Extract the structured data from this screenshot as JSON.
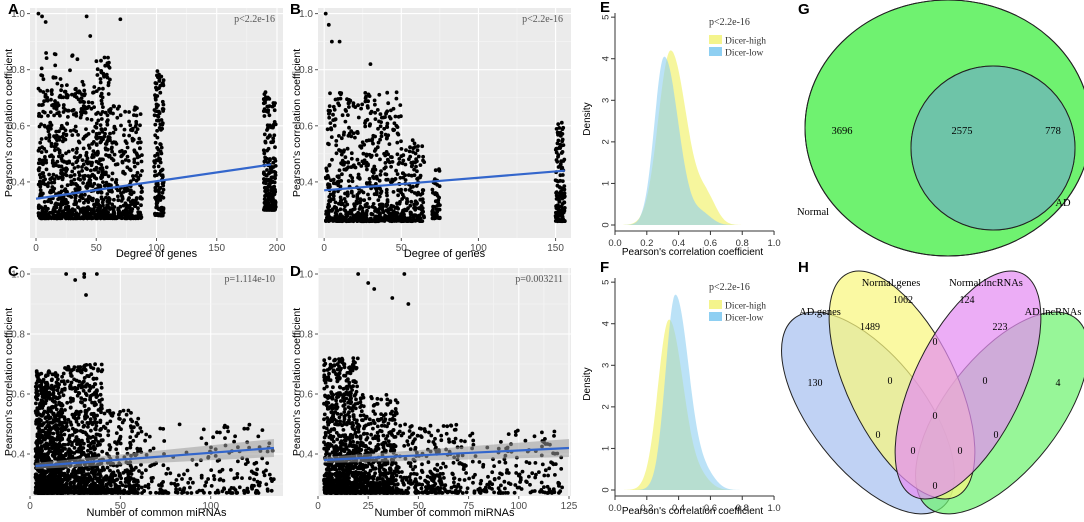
{
  "chart_data": [
    {
      "id": "A",
      "type": "scatter",
      "panel_label": "A",
      "xlabel": "Degree of genes",
      "ylabel": "Pearson's correlation coefficient",
      "annotation": "p<2.2e-16",
      "xlim": [
        -5,
        205
      ],
      "ylim": [
        0.2,
        1.02
      ],
      "xticks": [
        0,
        50,
        100,
        150,
        200
      ],
      "xtick_labels": [
        "0",
        "50",
        "100",
        "150",
        "200"
      ],
      "yticks": [
        0.4,
        0.6,
        0.8,
        1.0
      ],
      "ytick_labels": [
        "0.4",
        "0.6",
        "0.8",
        "1.0"
      ],
      "regression": {
        "x": [
          0,
          195
        ],
        "y": [
          0.34,
          0.462
        ]
      },
      "confidence_band": false,
      "scatter_clusters": [
        {
          "x": [
            2,
            50
          ],
          "y": [
            0.27,
            0.75
          ],
          "n": 650
        },
        {
          "x": [
            2,
            40
          ],
          "y": [
            0.7,
            0.86
          ],
          "n": 35
        },
        {
          "x": [
            50,
            62
          ],
          "y": [
            0.27,
            0.85
          ],
          "n": 220
        },
        {
          "x": [
            62,
            88
          ],
          "y": [
            0.27,
            0.68
          ],
          "n": 260
        },
        {
          "x": [
            98,
            106
          ],
          "y": [
            0.28,
            0.8
          ],
          "n": 160
        },
        {
          "x": [
            189,
            199
          ],
          "y": [
            0.3,
            0.72
          ],
          "n": 220
        }
      ],
      "outliers": [
        [
          2,
          1.0
        ],
        [
          5,
          0.99
        ],
        [
          8,
          0.97
        ],
        [
          42,
          0.99
        ],
        [
          70,
          0.98
        ],
        [
          45,
          0.92
        ]
      ]
    },
    {
      "id": "B",
      "type": "scatter",
      "panel_label": "B",
      "xlabel": "Degree of genes",
      "ylabel": "Pearson's correlation coefficient",
      "annotation": "p<2.2e-16",
      "xlim": [
        -4,
        160
      ],
      "ylim": [
        0.2,
        1.02
      ],
      "xticks": [
        0,
        50,
        100,
        150
      ],
      "xtick_labels": [
        "0",
        "50",
        "100",
        "150"
      ],
      "yticks": [
        0.4,
        0.6,
        0.8,
        1.0
      ],
      "ytick_labels": [
        "0.4",
        "0.6",
        "0.8",
        "1.0"
      ],
      "regression": {
        "x": [
          0,
          156
        ],
        "y": [
          0.37,
          0.44
        ]
      },
      "confidence_band": false,
      "scatter_clusters": [
        {
          "x": [
            1,
            50
          ],
          "y": [
            0.26,
            0.72
          ],
          "n": 650
        },
        {
          "x": [
            50,
            65
          ],
          "y": [
            0.26,
            0.55
          ],
          "n": 160
        },
        {
          "x": [
            70,
            75
          ],
          "y": [
            0.27,
            0.45
          ],
          "n": 60
        },
        {
          "x": [
            150,
            156
          ],
          "y": [
            0.26,
            0.62
          ],
          "n": 140
        }
      ],
      "outliers": [
        [
          1,
          1.0
        ],
        [
          3,
          0.96
        ],
        [
          5,
          0.9
        ],
        [
          10,
          0.9
        ],
        [
          30,
          0.82
        ]
      ]
    },
    {
      "id": "C",
      "type": "scatter",
      "panel_label": "C",
      "xlabel": "Number of common miRNAs",
      "ylabel": "Pearson's correlation coefficient",
      "annotation": "p=1.114e-10",
      "xlim": [
        0,
        140
      ],
      "ylim": [
        0.26,
        1.02
      ],
      "xticks": [
        0,
        50,
        100
      ],
      "xtick_labels": [
        "0",
        "50",
        "100"
      ],
      "yticks": [
        0.4,
        0.6,
        0.8,
        1.0
      ],
      "ytick_labels": [
        "0.4",
        "0.6",
        "0.8",
        "1.0"
      ],
      "regression": {
        "x": [
          3,
          135
        ],
        "y": [
          0.36,
          0.42
        ]
      },
      "confidence_band": true,
      "scatter_clusters": [
        {
          "x": [
            3,
            18
          ],
          "y": [
            0.27,
            0.68
          ],
          "n": 900
        },
        {
          "x": [
            18,
            40
          ],
          "y": [
            0.27,
            0.7
          ],
          "n": 700
        },
        {
          "x": [
            40,
            60
          ],
          "y": [
            0.27,
            0.55
          ],
          "n": 250
        },
        {
          "x": [
            60,
            135
          ],
          "y": [
            0.27,
            0.5
          ],
          "n": 220
        }
      ],
      "outliers": [
        [
          20,
          1.0
        ],
        [
          30,
          1.0
        ],
        [
          37,
          1.0
        ],
        [
          25,
          0.98
        ],
        [
          31,
          0.93
        ],
        [
          30,
          0.99
        ]
      ]
    },
    {
      "id": "D",
      "type": "scatter",
      "panel_label": "D",
      "xlabel": "Number of common miRNAs",
      "ylabel": "Pearson's correlation coefficient",
      "annotation": "p=0.003211",
      "xlim": [
        0,
        126
      ],
      "ylim": [
        0.26,
        1.02
      ],
      "xticks": [
        0,
        25,
        50,
        75,
        100,
        125
      ],
      "xtick_labels": [
        "0",
        "25",
        "50",
        "75",
        "100",
        "125"
      ],
      "yticks": [
        0.4,
        0.6,
        0.8,
        1.0
      ],
      "ytick_labels": [
        "0.4",
        "0.6",
        "0.8",
        "1.0"
      ],
      "regression": {
        "x": [
          3,
          125
        ],
        "y": [
          0.38,
          0.42
        ]
      },
      "confidence_band": true,
      "scatter_clusters": [
        {
          "x": [
            3,
            20
          ],
          "y": [
            0.27,
            0.72
          ],
          "n": 850
        },
        {
          "x": [
            20,
            40
          ],
          "y": [
            0.27,
            0.6
          ],
          "n": 500
        },
        {
          "x": [
            40,
            70
          ],
          "y": [
            0.27,
            0.5
          ],
          "n": 250
        },
        {
          "x": [
            70,
            122
          ],
          "y": [
            0.27,
            0.48
          ],
          "n": 180
        }
      ],
      "outliers": [
        [
          20,
          1.0
        ],
        [
          25,
          0.97
        ],
        [
          28,
          0.95
        ],
        [
          43,
          1.0
        ],
        [
          45,
          0.9
        ],
        [
          37,
          0.92
        ]
      ]
    },
    {
      "id": "E",
      "type": "area",
      "panel_label": "E",
      "xlabel": "Pearson's correlation coefficient",
      "ylabel": "Density",
      "annotation": "p<2.2e-16",
      "xlim": [
        0,
        1.05
      ],
      "ylim": [
        0,
        5.1
      ],
      "xticks": [
        0,
        0.2,
        0.4,
        0.6,
        0.8,
        1.0
      ],
      "xtick_labels": [
        "0.0",
        "0.2",
        "0.4",
        "0.6",
        "0.8",
        "1.0"
      ],
      "yticks": [
        0,
        1,
        2,
        3,
        4,
        5
      ],
      "ytick_labels": [
        "0",
        "1",
        "2",
        "3",
        "4",
        "5"
      ],
      "series": [
        {
          "name": "Dicer-high",
          "color": "#f4f48c",
          "peak_x": 0.35,
          "peak_y": 4.2,
          "sd_left": 0.078,
          "sd_right": 0.1,
          "shoulder_x": 0.58,
          "shoulder_y": 0.55
        },
        {
          "name": "Dicer-low",
          "color": "#8ecff2",
          "peak_x": 0.31,
          "peak_y": 4.05,
          "sd_left": 0.062,
          "sd_right": 0.088,
          "shoulder_x": 0.55,
          "shoulder_y": 0.25
        }
      ]
    },
    {
      "id": "F",
      "type": "area",
      "panel_label": "F",
      "xlabel": "Pearson's correlation coefficient",
      "ylabel": "Density",
      "annotation": "p<2.2e-16",
      "xlim": [
        0,
        1.05
      ],
      "ylim": [
        0,
        5.1
      ],
      "xticks": [
        0,
        0.2,
        0.4,
        0.6,
        0.8,
        1.0
      ],
      "xtick_labels": [
        "0.0",
        "0.2",
        "0.4",
        "0.6",
        "0.8",
        "1.0"
      ],
      "yticks": [
        0,
        1,
        2,
        3,
        4,
        5
      ],
      "ytick_labels": [
        "0",
        "1",
        "2",
        "3",
        "4",
        "5"
      ],
      "series": [
        {
          "name": "Dicer-high",
          "color": "#f4f48c",
          "peak_x": 0.34,
          "peak_y": 4.1,
          "sd_left": 0.07,
          "sd_right": 0.09,
          "shoulder_x": 0.55,
          "shoulder_y": 0.2
        },
        {
          "name": "Dicer-low",
          "color": "#8ecff2",
          "peak_x": 0.38,
          "peak_y": 4.7,
          "sd_left": 0.062,
          "sd_right": 0.085,
          "shoulder_x": 0.58,
          "shoulder_y": 0.3
        }
      ]
    }
  ],
  "venn_two": {
    "panel_label": "G",
    "sets": [
      {
        "name": "Normal",
        "color": "#6ff270"
      },
      {
        "name": "AD",
        "color": "#a8c0f0"
      }
    ],
    "overlap_color": "#6ec4a8",
    "counts": {
      "normal_only": "3696",
      "both": "2575",
      "ad_only": "778"
    }
  },
  "venn_four": {
    "panel_label": "H",
    "sets": [
      {
        "name": "AD.genes",
        "color": "#a8c0f0"
      },
      {
        "name": "Normal.genes",
        "color": "#f8f67e"
      },
      {
        "name": "Normal.lncRNAs",
        "color": "#e48ef2"
      },
      {
        "name": "AD.lncRNAs",
        "color": "#6ff270"
      }
    ],
    "region_counts": [
      {
        "region": "AD.genes only",
        "value": "130"
      },
      {
        "region": "Normal.genes only",
        "value": "1062"
      },
      {
        "region": "Normal.lncRNAs only",
        "value": "124"
      },
      {
        "region": "AD.lncRNAs only",
        "value": "4"
      },
      {
        "region": "AD.genes & Normal.genes",
        "value": "1489"
      },
      {
        "region": "Normal.genes & Normal.lncRNAs",
        "value": "0"
      },
      {
        "region": "Normal.lncRNAs & AD.lncRNAs",
        "value": "223"
      },
      {
        "region": "AD.genes & Normal.genes & Normal.lncRNAs",
        "value": "0"
      },
      {
        "region": "Normal.genes & Normal.lncRNAs & AD.lncRNAs",
        "value": "0"
      },
      {
        "region": "all four",
        "value": "0"
      },
      {
        "region": "AD.genes & Normal.lncRNAs",
        "value": "0"
      },
      {
        "region": "Normal.genes & AD.lncRNAs",
        "value": "0"
      },
      {
        "region": "AD.genes & Normal.lncRNAs & AD.lncRNAs",
        "value": "0"
      },
      {
        "region": "AD.genes & Normal.genes & AD.lncRNAs",
        "value": "0"
      },
      {
        "region": "AD.genes & AD.lncRNAs",
        "value": "0"
      }
    ]
  }
}
